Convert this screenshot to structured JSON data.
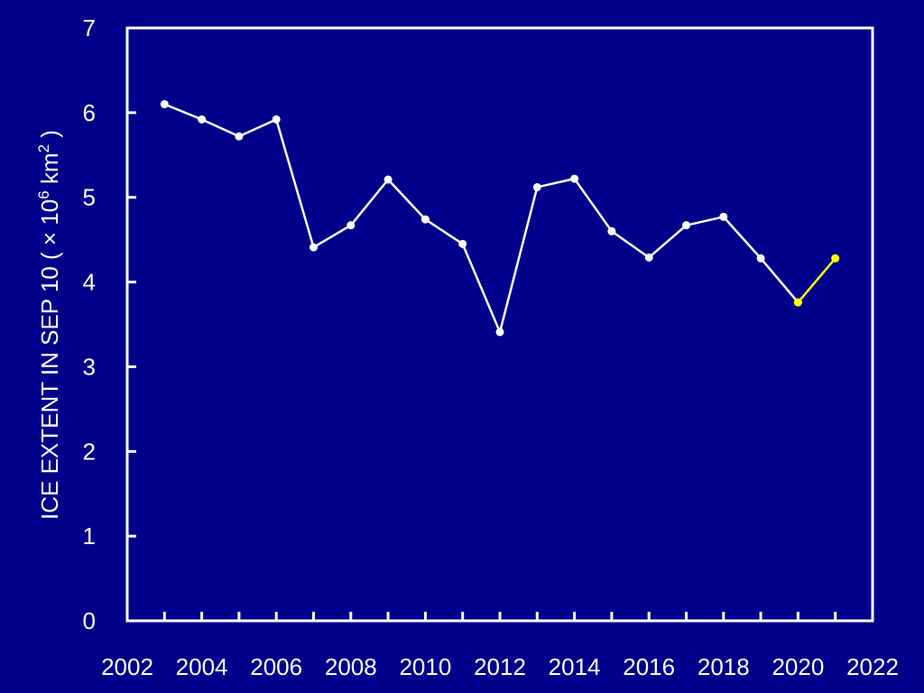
{
  "chart_data": {
    "type": "line",
    "title": "",
    "xlabel": "",
    "ylabel": {
      "prefix": "ICE EXTENT IN SEP 10 ( ",
      "times": "×",
      "base": " 10",
      "base_exp": "6",
      "unit": " km",
      "unit_exp": "2",
      "suffix": " )"
    },
    "xlim": [
      2002,
      2022
    ],
    "ylim": [
      0,
      7
    ],
    "xticks": [
      2002,
      2004,
      2006,
      2008,
      2010,
      2012,
      2014,
      2016,
      2018,
      2020,
      2022
    ],
    "xtick_labels": [
      "2002",
      "2004",
      "2006",
      "2008",
      "2010",
      "2012",
      "2014",
      "2016",
      "2018",
      "2020",
      "2022"
    ],
    "xminor_ticks": [
      2003,
      2005,
      2007,
      2009,
      2011,
      2013,
      2015,
      2017,
      2019,
      2021
    ],
    "yticks": [
      0,
      1,
      2,
      3,
      4,
      5,
      6,
      7
    ],
    "ytick_labels": [
      "0",
      "1",
      "2",
      "3",
      "4",
      "5",
      "6",
      "7"
    ],
    "grid": false,
    "series": [
      {
        "color": "#ffffff",
        "x": [
          2003,
          2004,
          2005,
          2006,
          2007,
          2008,
          2009,
          2010,
          2011,
          2012,
          2013,
          2014,
          2015,
          2016,
          2017,
          2018,
          2019,
          2020
        ],
        "y": [
          6.1,
          5.92,
          5.72,
          5.92,
          4.41,
          4.67,
          5.21,
          4.74,
          4.45,
          3.41,
          5.12,
          5.22,
          4.6,
          4.29,
          4.67,
          4.77,
          4.28,
          3.76
        ]
      },
      {
        "color": "#ffff00",
        "x": [
          2020,
          2021
        ],
        "y": [
          3.76,
          4.28
        ]
      }
    ],
    "colors": {
      "background": "#00008b",
      "axes": "#ffffff",
      "text": "#ffffff"
    }
  }
}
